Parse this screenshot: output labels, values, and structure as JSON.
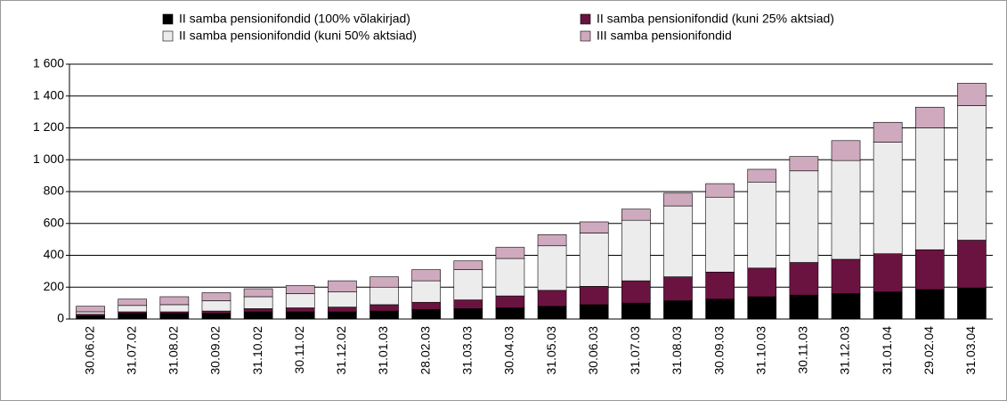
{
  "chart_data": {
    "type": "stacked-bar",
    "categories": [
      "30.06.02",
      "31.07.02",
      "31.08.02",
      "30.09.02",
      "31.10.02",
      "30.11.02",
      "31.12.02",
      "31.01.03",
      "28.02.03",
      "31.03.03",
      "30.04.03",
      "31.05.03",
      "30.06.03",
      "31.07.03",
      "31.08.03",
      "30.09.03",
      "31.10.03",
      "30.11.03",
      "31.12.03",
      "31.01.04",
      "29.02.04",
      "31.03.04"
    ],
    "series": [
      {
        "name": "II samba pensionifondid (100% võlakirjad)",
        "color": "#000000",
        "values": [
          20,
          35,
          35,
          35,
          45,
          45,
          45,
          50,
          60,
          65,
          70,
          80,
          90,
          100,
          115,
          125,
          140,
          150,
          160,
          170,
          185,
          195
        ]
      },
      {
        "name": "II samba pensionifondid (kuni 25% aktsiad)",
        "color": "#6b1340",
        "values": [
          10,
          10,
          10,
          15,
          20,
          25,
          30,
          40,
          45,
          55,
          75,
          100,
          115,
          140,
          150,
          170,
          180,
          205,
          215,
          240,
          250,
          300
        ]
      },
      {
        "name": "II samba pensionifondid (kuni 50% aktsiad)",
        "color": "#ececec",
        "values": [
          15,
          40,
          45,
          65,
          75,
          90,
          95,
          110,
          135,
          190,
          235,
          280,
          335,
          380,
          445,
          470,
          540,
          575,
          620,
          700,
          765,
          845
        ]
      },
      {
        "name": "III samba pensionifondid",
        "color": "#cfa9bd",
        "values": [
          35,
          40,
          50,
          50,
          50,
          50,
          70,
          65,
          70,
          55,
          70,
          70,
          70,
          70,
          80,
          85,
          80,
          90,
          125,
          125,
          130,
          140
        ]
      }
    ],
    "ylim": [
      0,
      1600
    ],
    "yticks": [
      0,
      200,
      400,
      600,
      800,
      {
        "value": 1000,
        "label": "1 000"
      },
      {
        "value": 1200,
        "label": "1 200"
      },
      {
        "value": 1400,
        "label": "1 400"
      },
      {
        "value": 1600,
        "label": "1 600"
      }
    ],
    "grid": true
  }
}
